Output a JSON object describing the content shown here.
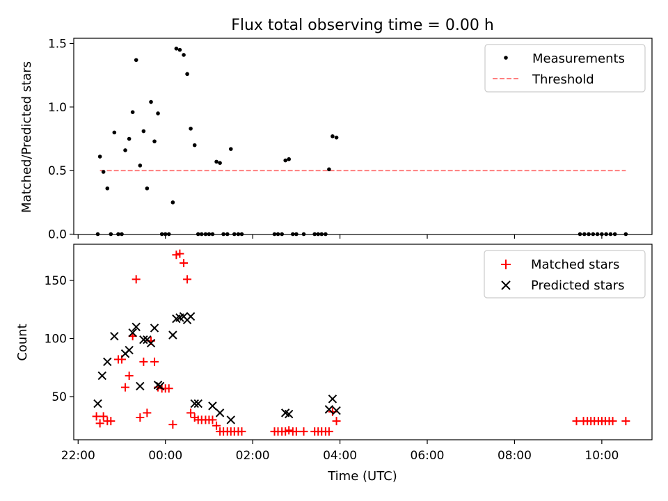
{
  "chart_data": [
    {
      "type": "scatter",
      "title": "Flux total observing time = 0.00 h",
      "xlabel": "",
      "ylabel": "Matched/Predicted stars",
      "xlim": [
        -2.1,
        11.15
      ],
      "ylim": [
        0.0,
        1.5
      ],
      "yticks": [
        0.0,
        0.5,
        1.0,
        1.5
      ],
      "ytick_labels": [
        "0.0",
        "0.5",
        "1.0",
        "1.5"
      ],
      "legend": {
        "position": "top-right",
        "entries": [
          "Measurements",
          "Threshold"
        ]
      },
      "threshold": {
        "name": "Threshold",
        "y": 0.5,
        "x_start": -1.5,
        "x_end": 10.55,
        "color": "#ff7f7f"
      },
      "series": [
        {
          "name": "Measurements",
          "color": "#000000",
          "points": [
            [
              -1.55,
              0.0
            ],
            [
              -1.5,
              0.61
            ],
            [
              -1.42,
              0.49
            ],
            [
              -1.33,
              0.36
            ],
            [
              -1.25,
              0.0
            ],
            [
              -1.17,
              0.8
            ],
            [
              -1.08,
              0.0
            ],
            [
              -1.0,
              0.0
            ],
            [
              -0.92,
              0.66
            ],
            [
              -0.83,
              0.75
            ],
            [
              -0.75,
              0.96
            ],
            [
              -0.67,
              1.37
            ],
            [
              -0.58,
              0.54
            ],
            [
              -0.5,
              0.81
            ],
            [
              -0.42,
              0.36
            ],
            [
              -0.33,
              1.04
            ],
            [
              -0.25,
              0.73
            ],
            [
              -0.17,
              0.95
            ],
            [
              -0.08,
              0.0
            ],
            [
              0.0,
              0.0
            ],
            [
              0.08,
              0.0
            ],
            [
              0.17,
              0.25
            ],
            [
              0.25,
              1.46
            ],
            [
              0.33,
              1.45
            ],
            [
              0.42,
              1.41
            ],
            [
              0.5,
              1.26
            ],
            [
              0.58,
              0.83
            ],
            [
              0.67,
              0.7
            ],
            [
              0.75,
              0.0
            ],
            [
              0.83,
              0.0
            ],
            [
              0.92,
              0.0
            ],
            [
              1.0,
              0.0
            ],
            [
              1.08,
              0.0
            ],
            [
              1.17,
              0.57
            ],
            [
              1.25,
              0.56
            ],
            [
              1.33,
              0.0
            ],
            [
              1.42,
              0.0
            ],
            [
              1.5,
              0.67
            ],
            [
              1.58,
              0.0
            ],
            [
              1.67,
              0.0
            ],
            [
              1.75,
              0.0
            ],
            [
              2.5,
              0.0
            ],
            [
              2.58,
              0.0
            ],
            [
              2.67,
              0.0
            ],
            [
              2.75,
              0.58
            ],
            [
              2.83,
              0.59
            ],
            [
              2.92,
              0.0
            ],
            [
              3.0,
              0.0
            ],
            [
              3.17,
              0.0
            ],
            [
              3.42,
              0.0
            ],
            [
              3.5,
              0.0
            ],
            [
              3.58,
              0.0
            ],
            [
              3.67,
              0.0
            ],
            [
              3.75,
              0.51
            ],
            [
              3.83,
              0.77
            ],
            [
              3.92,
              0.76
            ],
            [
              9.5,
              0.0
            ],
            [
              9.6,
              0.0
            ],
            [
              9.7,
              0.0
            ],
            [
              9.8,
              0.0
            ],
            [
              9.9,
              0.0
            ],
            [
              10.0,
              0.0
            ],
            [
              10.1,
              0.0
            ],
            [
              10.2,
              0.0
            ],
            [
              10.3,
              0.0
            ],
            [
              10.55,
              0.0
            ]
          ]
        }
      ]
    },
    {
      "type": "scatter",
      "title": "",
      "xlabel": "Time (UTC)",
      "ylabel": "Count",
      "xlim": [
        -2.1,
        11.15
      ],
      "ylim": [
        19,
        181
      ],
      "yticks": [
        50,
        100,
        150
      ],
      "ytick_labels": [
        "50",
        "100",
        "150"
      ],
      "xticks": [
        -2,
        0,
        2,
        4,
        6,
        8,
        10
      ],
      "xtick_labels": [
        "22:00",
        "00:00",
        "02:00",
        "04:00",
        "06:00",
        "08:00",
        "10:00"
      ],
      "legend": {
        "position": "top-right",
        "entries": [
          "Matched stars",
          "Predicted stars"
        ]
      },
      "series": [
        {
          "name": "Matched stars",
          "marker": "+",
          "color": "#ff0000",
          "points": [
            [
              -1.58,
              33
            ],
            [
              -1.5,
              27
            ],
            [
              -1.42,
              33
            ],
            [
              -1.33,
              29
            ],
            [
              -1.25,
              29
            ],
            [
              -1.08,
              82
            ],
            [
              -1.0,
              82
            ],
            [
              -0.92,
              58
            ],
            [
              -0.83,
              68
            ],
            [
              -0.75,
              102
            ],
            [
              -0.67,
              151
            ],
            [
              -0.58,
              32
            ],
            [
              -0.5,
              80
            ],
            [
              -0.42,
              36
            ],
            [
              -0.33,
              98
            ],
            [
              -0.25,
              80
            ],
            [
              -0.17,
              58
            ],
            [
              -0.08,
              57
            ],
            [
              0.0,
              57
            ],
            [
              0.08,
              57
            ],
            [
              0.17,
              26
            ],
            [
              0.25,
              172
            ],
            [
              0.33,
              173
            ],
            [
              0.42,
              165
            ],
            [
              0.5,
              151
            ],
            [
              0.58,
              36
            ],
            [
              0.67,
              32
            ],
            [
              0.75,
              30
            ],
            [
              0.83,
              30
            ],
            [
              0.92,
              30
            ],
            [
              1.0,
              30
            ],
            [
              1.08,
              30
            ],
            [
              1.17,
              25
            ],
            [
              1.25,
              20
            ],
            [
              1.33,
              20
            ],
            [
              1.42,
              20
            ],
            [
              1.5,
              20
            ],
            [
              1.58,
              20
            ],
            [
              1.67,
              20
            ],
            [
              1.75,
              20
            ],
            [
              2.5,
              20
            ],
            [
              2.58,
              20
            ],
            [
              2.67,
              20
            ],
            [
              2.75,
              20
            ],
            [
              2.83,
              21
            ],
            [
              2.92,
              20
            ],
            [
              3.0,
              20
            ],
            [
              3.17,
              20
            ],
            [
              3.42,
              20
            ],
            [
              3.5,
              20
            ],
            [
              3.58,
              20
            ],
            [
              3.67,
              20
            ],
            [
              3.75,
              20
            ],
            [
              3.83,
              37
            ],
            [
              3.92,
              29
            ],
            [
              9.42,
              29
            ],
            [
              9.58,
              29
            ],
            [
              9.67,
              29
            ],
            [
              9.75,
              29
            ],
            [
              9.83,
              29
            ],
            [
              9.92,
              29
            ],
            [
              10.0,
              29
            ],
            [
              10.08,
              29
            ],
            [
              10.17,
              29
            ],
            [
              10.25,
              29
            ],
            [
              10.55,
              29
            ]
          ]
        },
        {
          "name": "Predicted stars",
          "marker": "x",
          "color": "#000000",
          "points": [
            [
              -1.55,
              44
            ],
            [
              -1.45,
              68
            ],
            [
              -1.33,
              80
            ],
            [
              -1.17,
              102
            ],
            [
              -0.92,
              87
            ],
            [
              -0.83,
              90
            ],
            [
              -0.75,
              105
            ],
            [
              -0.67,
              110
            ],
            [
              -0.58,
              59
            ],
            [
              -0.5,
              99
            ],
            [
              -0.42,
              99
            ],
            [
              -0.33,
              96
            ],
            [
              -0.25,
              109
            ],
            [
              -0.17,
              60
            ],
            [
              -0.12,
              59
            ],
            [
              0.17,
              103
            ],
            [
              0.25,
              117
            ],
            [
              0.33,
              118
            ],
            [
              0.42,
              119
            ],
            [
              0.5,
              116
            ],
            [
              0.58,
              119
            ],
            [
              0.67,
              44
            ],
            [
              0.75,
              44
            ],
            [
              1.08,
              42
            ],
            [
              1.25,
              36
            ],
            [
              1.5,
              30
            ],
            [
              2.75,
              36
            ],
            [
              2.83,
              35
            ],
            [
              3.75,
              39
            ],
            [
              3.83,
              48
            ],
            [
              3.92,
              38
            ]
          ]
        }
      ]
    }
  ]
}
